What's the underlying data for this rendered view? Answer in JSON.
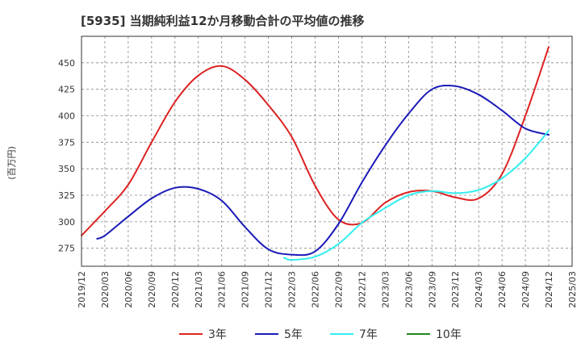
{
  "chart_data": {
    "type": "line",
    "title": "[5935]  当期純利益12か月移動合計の平均値の推移",
    "ylabel": "(百万円)",
    "xlabel": "",
    "ylim": [
      258,
      475
    ],
    "y_ticks": [
      275,
      300,
      325,
      350,
      375,
      400,
      425,
      450
    ],
    "x_ticks": [
      "2019/12",
      "2020/03",
      "2020/06",
      "2020/09",
      "2020/12",
      "2021/03",
      "2021/06",
      "2021/09",
      "2021/12",
      "2022/03",
      "2022/06",
      "2022/09",
      "2022/12",
      "2023/03",
      "2023/06",
      "2023/09",
      "2023/12",
      "2024/03",
      "2024/06",
      "2024/09",
      "2024/12",
      "2025/03"
    ],
    "grid": true,
    "legend_position": "bottom",
    "series": [
      {
        "name": "3年",
        "color": "#dd2222",
        "x": [
          "2019/12",
          "2020/03",
          "2020/06",
          "2020/09",
          "2020/12",
          "2021/03",
          "2021/06",
          "2021/09",
          "2021/12",
          "2022/03",
          "2022/06",
          "2022/09",
          "2022/12",
          "2023/03",
          "2023/06",
          "2023/09",
          "2023/12",
          "2024/03",
          "2024/06",
          "2024/09",
          "2024/12"
        ],
        "values": [
          287,
          310,
          335,
          375,
          413,
          438,
          447,
          434,
          410,
          380,
          334,
          302,
          299,
          318,
          328,
          329,
          323,
          322,
          345,
          400,
          465
        ]
      },
      {
        "name": "5年",
        "color": "#1a1ab8",
        "x": [
          "2020/02",
          "2020/03",
          "2020/06",
          "2020/09",
          "2020/12",
          "2021/03",
          "2021/06",
          "2021/09",
          "2021/12",
          "2022/03",
          "2022/06",
          "2022/09",
          "2022/12",
          "2023/03",
          "2023/06",
          "2023/09",
          "2023/12",
          "2024/03",
          "2024/06",
          "2024/09",
          "2024/12"
        ],
        "values": [
          284,
          287,
          305,
          322,
          332,
          331,
          320,
          295,
          274,
          269,
          272,
          298,
          337,
          372,
          402,
          425,
          428,
          420,
          405,
          388,
          382
        ]
      },
      {
        "name": "7年",
        "color": "#33eeee",
        "x": [
          "2022/02",
          "2022/03",
          "2022/06",
          "2022/09",
          "2022/12",
          "2023/03",
          "2023/06",
          "2023/09",
          "2023/12",
          "2024/03",
          "2024/06",
          "2024/09",
          "2024/12"
        ],
        "values": [
          266,
          264,
          267,
          279,
          299,
          313,
          325,
          329,
          327,
          330,
          341,
          360,
          386
        ]
      },
      {
        "name": "10年",
        "color": "#228822",
        "x": [],
        "values": []
      }
    ]
  }
}
